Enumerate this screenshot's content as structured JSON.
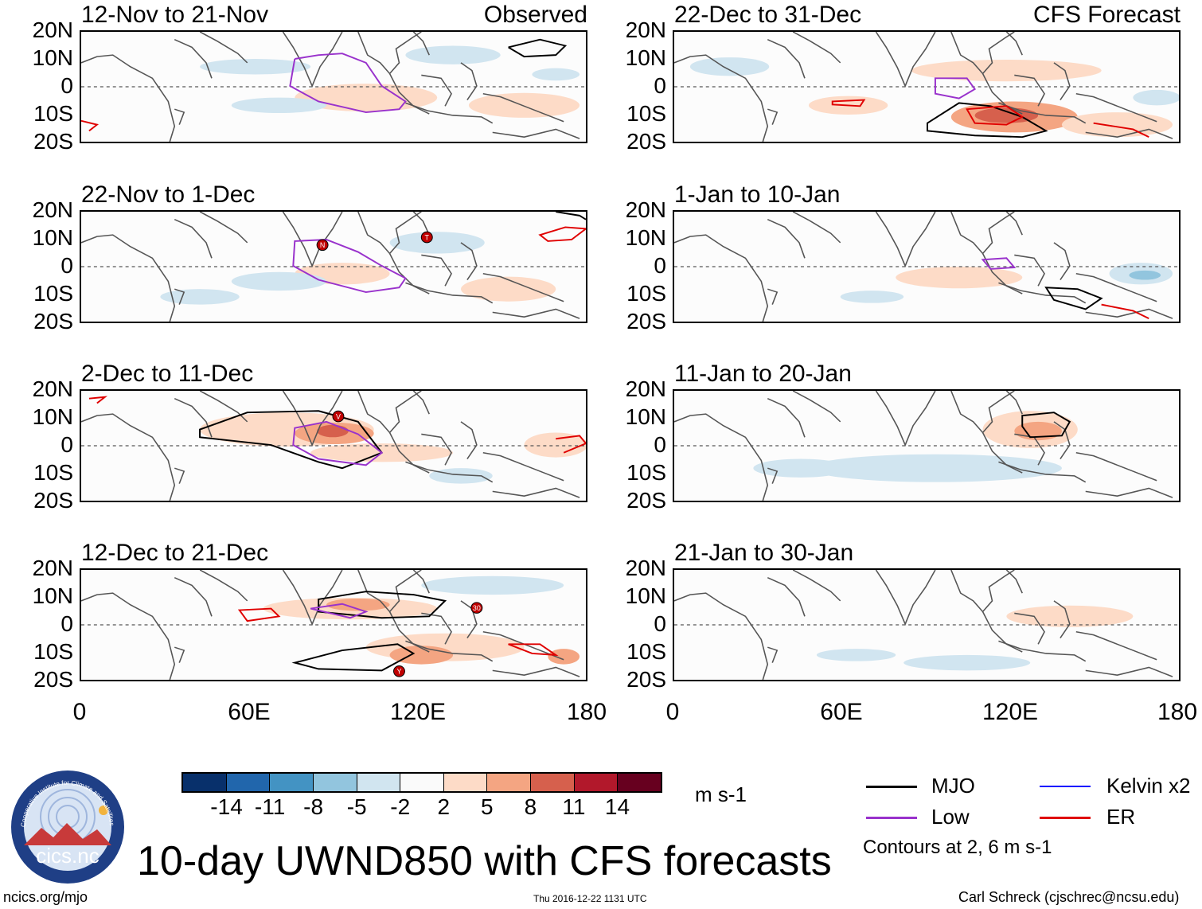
{
  "panels": [
    {
      "title": "12-Nov to 21-Nov",
      "label": "Observed"
    },
    {
      "title": "22-Dec to 31-Dec",
      "label": "CFS Forecast"
    },
    {
      "title": "22-Nov to 1-Dec",
      "label": ""
    },
    {
      "title": "1-Jan to 10-Jan",
      "label": ""
    },
    {
      "title": "2-Dec to 11-Dec",
      "label": ""
    },
    {
      "title": "11-Jan to 20-Jan",
      "label": ""
    },
    {
      "title": "12-Dec to 21-Dec",
      "label": ""
    },
    {
      "title": "21-Jan to 30-Jan",
      "label": ""
    }
  ],
  "axes": {
    "lat_ticks": [
      "20N",
      "10N",
      "0",
      "10S",
      "20S"
    ],
    "lon_ticks": [
      "0",
      "60E",
      "120E",
      "180"
    ]
  },
  "colorbar": {
    "colors": [
      "#08306b",
      "#2166ac",
      "#4393c3",
      "#92c5de",
      "#d1e5f0",
      "#fafafa",
      "#fddbc7",
      "#f4a582",
      "#d6604d",
      "#b2182b",
      "#67001f"
    ],
    "ticks": [
      "-14",
      "-11",
      "-8",
      "-5",
      "-2",
      "2",
      "5",
      "8",
      "11",
      "14"
    ],
    "units": "m s-1"
  },
  "title": "10-day UWND850 with CFS forecasts",
  "legend": {
    "items": [
      {
        "label": "MJO",
        "color": "#000000"
      },
      {
        "label": "Kelvin x2",
        "color": "#1010ff"
      },
      {
        "label": "Low",
        "color": "#9932cc"
      },
      {
        "label": "ER",
        "color": "#e00000"
      }
    ],
    "note": "Contours at 2, 6 m s-1"
  },
  "footer": {
    "left": "ncics.org/mjo",
    "center": "Thu 2016-12-22 1131 UTC",
    "right": "Carl Schreck (cjschrec@ncsu.edu)"
  },
  "logo": {
    "ring_text": "Cooperative Institute for Climate and Satellites",
    "name": "cics.nc"
  },
  "storm_markers": {
    "p2": [
      "N",
      "T"
    ],
    "p4": [
      "V"
    ],
    "p6": [
      "30",
      "Y"
    ]
  }
}
